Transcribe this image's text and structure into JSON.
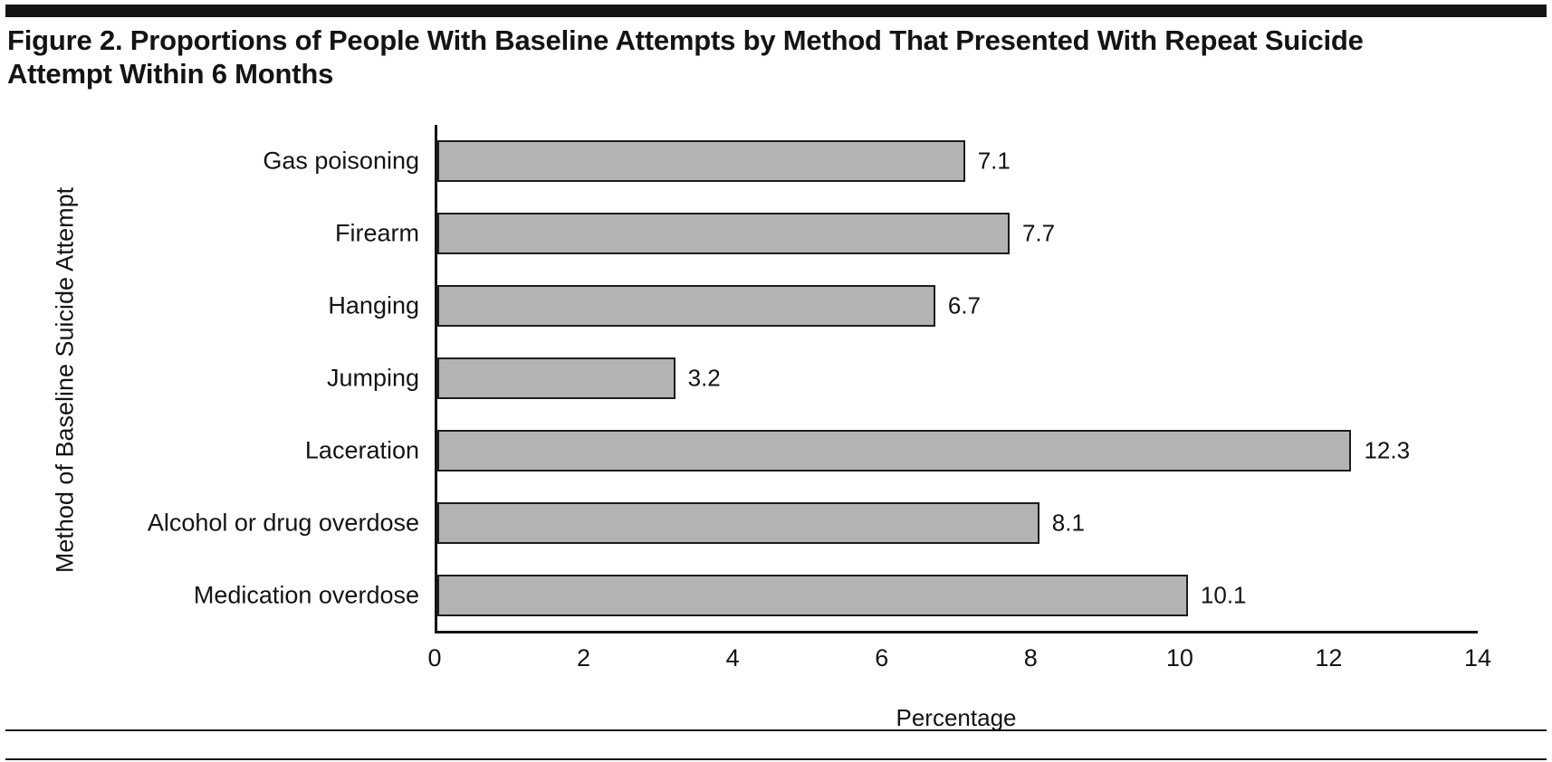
{
  "figure": {
    "title": "Figure 2. Proportions of People With Baseline Attempts by Method That Presented With Repeat Suicide Attempt Within 6 Months"
  },
  "chart_data": {
    "type": "bar",
    "orientation": "horizontal",
    "title": "Figure 2. Proportions of People With Baseline Attempts by Method That Presented With Repeat Suicide Attempt Within 6 Months",
    "categories": [
      "Gas poisoning",
      "Firearm",
      "Hanging",
      "Jumping",
      "Laceration",
      "Alcohol or drug overdose",
      "Medication overdose"
    ],
    "values": [
      7.1,
      7.7,
      6.7,
      3.2,
      12.3,
      8.1,
      10.1
    ],
    "value_labels": [
      "7.1",
      "7.7",
      "6.7",
      "3.2",
      "12.3",
      "8.1",
      "10.1"
    ],
    "xlabel": "Percentage",
    "ylabel": "Method of Baseline Suicide Attempt",
    "xlim": [
      0,
      14
    ],
    "x_ticks": [
      0,
      2,
      4,
      6,
      8,
      10,
      12,
      14
    ],
    "grid": false,
    "legend": false,
    "bar_color": "#b3b3b3",
    "bar_border_color": "#1c1c1c",
    "axis_color": "#141414"
  }
}
